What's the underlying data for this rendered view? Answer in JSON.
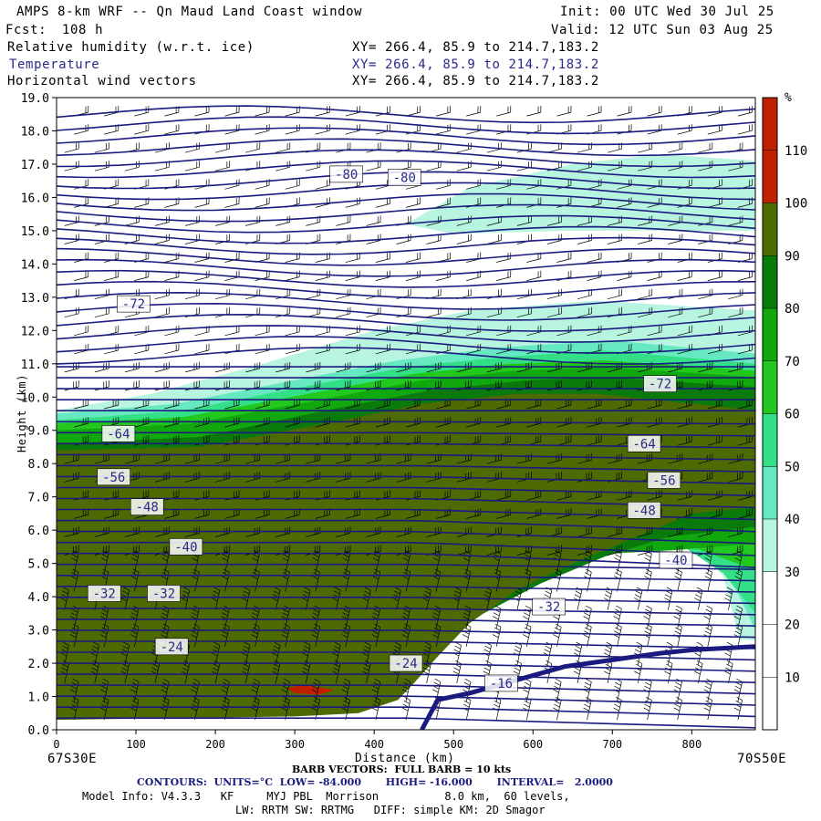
{
  "header": {
    "title": "AMPS 8-km WRF -- Qn Maud Land Coast window",
    "init": "Init: 00 UTC Wed 30 Jul 25",
    "fcst_label": "Fcst:",
    "fcst_value": "108 h",
    "valid": "Valid: 12 UTC Sun 03 Aug 25",
    "fields": [
      {
        "name": "Relative humidity (w.r.t. ice)",
        "xy": "XY= 266.4, 85.9 to 214.7,183.2"
      },
      {
        "name": "Temperature",
        "xy": "XY= 266.4, 85.9 to 214.7,183.2"
      },
      {
        "name": "Horizontal wind vectors",
        "xy": "XY= 266.4, 85.9 to 214.7,183.2"
      }
    ]
  },
  "colors": {
    "contour": "#1a1a80",
    "temperature_label": "#2a2a8a",
    "rh_scale": [
      "#ffffff",
      "#ffffff",
      "#ffffff",
      "#b8f5e0",
      "#66e8c0",
      "#33e088",
      "#22c81e",
      "#11a80e",
      "#0a7a0a",
      "#4e6a02",
      "#c02000"
    ]
  },
  "chart_data": {
    "type": "cross-section",
    "xlabel": "Distance (km)",
    "ylabel": "Height (km)",
    "xlim": [
      0,
      880
    ],
    "ylim": [
      0,
      19
    ],
    "x_ticks": [
      "0",
      "100",
      "200",
      "300",
      "400",
      "500",
      "600",
      "700",
      "800"
    ],
    "y_ticks": [
      "0.0",
      "1.0",
      "2.0",
      "3.0",
      "4.0",
      "5.0",
      "6.0",
      "7.0",
      "8.0",
      "9.0",
      "10.0",
      "11.0",
      "12.0",
      "13.0",
      "14.0",
      "15.0",
      "16.0",
      "17.0",
      "18.0",
      "19.0"
    ],
    "left_endpoint": "67S30E",
    "right_endpoint": "70S50E",
    "colorbar": {
      "unit": "%",
      "ticks": [
        "10",
        "20",
        "30",
        "40",
        "50",
        "60",
        "70",
        "80",
        "90",
        "100",
        "110"
      ],
      "boundaries": [
        0,
        10,
        20,
        30,
        40,
        50,
        60,
        70,
        80,
        90,
        100,
        110,
        120
      ]
    },
    "temperature_contour_labels": [
      {
        "text": "-80",
        "x": 365,
        "y": 16.7
      },
      {
        "text": "-80",
        "x": 438,
        "y": 16.6
      },
      {
        "text": "-72",
        "x": 97,
        "y": 12.8
      },
      {
        "text": "-72",
        "x": 760,
        "y": 10.4
      },
      {
        "text": "-64",
        "x": 78,
        "y": 8.9
      },
      {
        "text": "-64",
        "x": 740,
        "y": 8.6
      },
      {
        "text": "-56",
        "x": 72,
        "y": 7.6
      },
      {
        "text": "-56",
        "x": 765,
        "y": 7.5
      },
      {
        "text": "-48",
        "x": 114,
        "y": 6.7
      },
      {
        "text": "-48",
        "x": 740,
        "y": 6.6
      },
      {
        "text": "-40",
        "x": 163,
        "y": 5.5
      },
      {
        "text": "-40",
        "x": 780,
        "y": 5.1
      },
      {
        "text": "-32",
        "x": 60,
        "y": 4.1
      },
      {
        "text": "-32",
        "x": 135,
        "y": 4.1
      },
      {
        "text": "-32",
        "x": 620,
        "y": 3.7
      },
      {
        "text": "-24",
        "x": 145,
        "y": 2.5
      },
      {
        "text": "-24",
        "x": 440,
        "y": 2.0
      },
      {
        "text": "-16",
        "x": 560,
        "y": 1.4
      }
    ]
  },
  "footer": {
    "barb_vectors": "BARB VECTORS:  FULL BARB = 10 kts",
    "contours": "CONTOURS:  UNITS=°C  LOW= -84.000       HIGH= -16.000       INTERVAL=   2.0000",
    "model_info": "Model Info: V4.3.3   KF     MYJ PBL  Morrison          8.0 km,  60 levels,",
    "physics": "LW: RRTM SW: RRTMG   DIFF: simple KM: 2D Smagor"
  }
}
